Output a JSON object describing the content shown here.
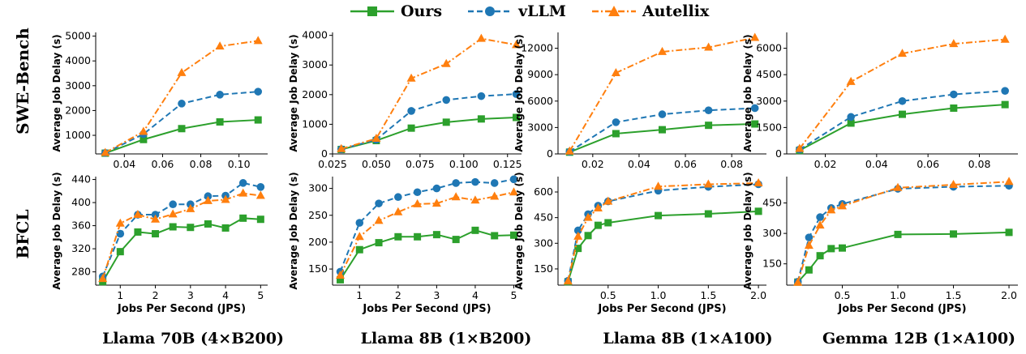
{
  "legend": {
    "ours": "Ours",
    "vllm": "vLLM",
    "autellix": "Autellix"
  },
  "colors": {
    "ours": "#2ca02c",
    "vllm": "#1f77b4",
    "autellix": "#ff7f0e"
  },
  "row_labels": {
    "top": "SWE-Bench",
    "bottom": "BFCL"
  },
  "column_titles": [
    "Llama 70B (4×B200)",
    "Llama 8B (1×B200)",
    "Llama 8B (1×A100)",
    "Gemma 12B (1×A100)"
  ],
  "ylabel": "Average Job Delay (s)",
  "xlabel": "Jobs Per Second (JPS)",
  "chart_data": [
    {
      "type": "line",
      "row": "SWE-Bench",
      "column": "Llama 70B (4×B200)",
      "x": [
        0.03,
        0.05,
        0.07,
        0.09,
        0.11
      ],
      "xlim": [
        0.025,
        0.115
      ],
      "ylim": [
        250,
        5150
      ],
      "xticks": [
        0.04,
        0.06,
        0.08,
        0.1
      ],
      "xtick_labels": [
        "0.04",
        "0.06",
        "0.08",
        "0.10"
      ],
      "yticks": [
        1000,
        2000,
        3000,
        4000,
        5000
      ],
      "ytick_labels": [
        "1000",
        "2000",
        "3000",
        "4000",
        "5000"
      ],
      "xlabel": "",
      "ylabel": "Average Job Delay (s)",
      "series": [
        {
          "name": "Ours",
          "values": [
            280,
            830,
            1270,
            1540,
            1620
          ]
        },
        {
          "name": "vLLM",
          "values": [
            290,
            1050,
            2280,
            2640,
            2760
          ]
        },
        {
          "name": "Autellix",
          "values": [
            300,
            1150,
            3520,
            4590,
            4810
          ]
        }
      ]
    },
    {
      "type": "line",
      "row": "SWE-Bench",
      "column": "Llama 8B (1×B200)",
      "x": [
        0.03,
        0.05,
        0.07,
        0.09,
        0.11,
        0.13
      ],
      "xlim": [
        0.025,
        0.133
      ],
      "ylim": [
        0,
        4100
      ],
      "xticks": [
        0.025,
        0.05,
        0.075,
        0.1,
        0.125
      ],
      "xtick_labels": [
        "0.025",
        "0.050",
        "0.075",
        "0.100",
        "0.125"
      ],
      "yticks": [
        0,
        1000,
        2000,
        3000,
        4000
      ],
      "ytick_labels": [
        "0",
        "1000",
        "2000",
        "3000",
        "4000"
      ],
      "xlabel": "",
      "ylabel": "Average Job Delay (s)",
      "series": [
        {
          "name": "Ours",
          "values": [
            150,
            450,
            870,
            1070,
            1180,
            1230
          ]
        },
        {
          "name": "vLLM",
          "values": [
            160,
            480,
            1450,
            1820,
            1950,
            2020
          ]
        },
        {
          "name": "Autellix",
          "values": [
            170,
            520,
            2550,
            3040,
            3890,
            3680
          ]
        }
      ]
    },
    {
      "type": "line",
      "row": "SWE-Bench",
      "column": "Llama 8B (1×A100)",
      "x": [
        0.01,
        0.03,
        0.05,
        0.07,
        0.09
      ],
      "xlim": [
        0.005,
        0.095
      ],
      "ylim": [
        0,
        13800
      ],
      "xticks": [
        0.02,
        0.04,
        0.06,
        0.08
      ],
      "xtick_labels": [
        "0.02",
        "0.04",
        "0.06",
        "0.08"
      ],
      "yticks": [
        0,
        3000,
        6000,
        9000,
        12000
      ],
      "ytick_labels": [
        "0",
        "3000",
        "6000",
        "9000",
        "12000"
      ],
      "xlabel": "",
      "ylabel": "Average Job Delay (s)",
      "series": [
        {
          "name": "Ours",
          "values": [
            200,
            2300,
            2750,
            3250,
            3400
          ]
        },
        {
          "name": "vLLM",
          "values": [
            250,
            3600,
            4500,
            4950,
            5200
          ]
        },
        {
          "name": "Autellix",
          "values": [
            300,
            9200,
            11600,
            12100,
            13200
          ]
        }
      ]
    },
    {
      "type": "line",
      "row": "SWE-Bench",
      "column": "Gemma 12B (1×A100)",
      "x": [
        0.01,
        0.03,
        0.05,
        0.07,
        0.09
      ],
      "xlim": [
        0.005,
        0.095
      ],
      "ylim": [
        0,
        6900
      ],
      "xticks": [
        0.02,
        0.04,
        0.06,
        0.08
      ],
      "xtick_labels": [
        "0.02",
        "0.04",
        "0.06",
        "0.08"
      ],
      "yticks": [
        0,
        1500,
        3000,
        4500,
        6000
      ],
      "ytick_labels": [
        "0",
        "1500",
        "3000",
        "4500",
        "6000"
      ],
      "xlabel": "",
      "ylabel": "Average Job Delay (s)",
      "series": [
        {
          "name": "Ours",
          "values": [
            200,
            1750,
            2250,
            2600,
            2800
          ]
        },
        {
          "name": "vLLM",
          "values": [
            250,
            2100,
            3000,
            3380,
            3580
          ]
        },
        {
          "name": "Autellix",
          "values": [
            300,
            4100,
            5700,
            6250,
            6500
          ]
        }
      ]
    },
    {
      "type": "line",
      "row": "BFCL",
      "column": "Llama 70B (4×B200)",
      "x": [
        0.5,
        1,
        1.5,
        2,
        2.5,
        3,
        3.5,
        4,
        4.5,
        5
      ],
      "xlim": [
        0.3,
        5.2
      ],
      "ylim": [
        257,
        445
      ],
      "xticks": [
        1,
        2,
        3,
        4,
        5
      ],
      "xtick_labels": [
        "1",
        "2",
        "3",
        "4",
        "5"
      ],
      "yticks": [
        280,
        320,
        360,
        400,
        440
      ],
      "ytick_labels": [
        "280",
        "320",
        "360",
        "400",
        "440"
      ],
      "xlabel": "Jobs Per Second (JPS)",
      "ylabel": "Average Job Delay (s)",
      "series": [
        {
          "name": "Ours",
          "values": [
            263,
            315,
            349,
            346,
            358,
            357,
            363,
            356,
            373,
            371
          ]
        },
        {
          "name": "vLLM",
          "values": [
            272,
            346,
            379,
            379,
            397,
            397,
            411,
            412,
            434,
            427
          ]
        },
        {
          "name": "Autellix",
          "values": [
            268,
            364,
            379,
            371,
            380,
            389,
            403,
            405,
            416,
            412
          ]
        }
      ]
    },
    {
      "type": "line",
      "row": "BFCL",
      "column": "Llama 8B (1×B200)",
      "x": [
        0.5,
        1,
        1.5,
        2,
        2.5,
        3,
        3.5,
        4,
        4.5,
        5
      ],
      "xlim": [
        0.3,
        5.2
      ],
      "ylim": [
        120,
        322
      ],
      "xticks": [
        1,
        2,
        3,
        4,
        5
      ],
      "xtick_labels": [
        "1",
        "2",
        "3",
        "4",
        "5"
      ],
      "yticks": [
        150,
        200,
        250,
        300
      ],
      "ytick_labels": [
        "150",
        "200",
        "250",
        "300"
      ],
      "xlabel": "Jobs Per Second (JPS)",
      "ylabel": "Average Job Delay (s)",
      "series": [
        {
          "name": "Ours",
          "values": [
            130,
            186,
            199,
            210,
            210,
            214,
            205,
            222,
            212,
            213
          ]
        },
        {
          "name": "vLLM",
          "values": [
            145,
            236,
            272,
            284,
            293,
            300,
            310,
            312,
            310,
            317
          ]
        },
        {
          "name": "Autellix",
          "values": [
            138,
            210,
            240,
            256,
            271,
            272,
            284,
            278,
            285,
            293
          ]
        }
      ]
    },
    {
      "type": "line",
      "row": "BFCL",
      "column": "Llama 8B (1×A100)",
      "x": [
        0.1,
        0.2,
        0.3,
        0.4,
        0.5,
        1.0,
        1.5,
        2.0
      ],
      "xlim": [
        0.0,
        2.08
      ],
      "ylim": [
        55,
        690
      ],
      "xticks": [
        0.5,
        1.0,
        1.5,
        2.0
      ],
      "xtick_labels": [
        "0.5",
        "1.0",
        "1.5",
        "2.0"
      ],
      "yticks": [
        150,
        300,
        450,
        600
      ],
      "ytick_labels": [
        "150",
        "300",
        "450",
        "600"
      ],
      "xlabel": "Jobs Per Second (JPS)",
      "ylabel": "Average Job Delay (s)",
      "series": [
        {
          "name": "Ours",
          "values": [
            75,
            270,
            345,
            405,
            420,
            462,
            472,
            487
          ]
        },
        {
          "name": "vLLM",
          "values": [
            80,
            375,
            470,
            520,
            545,
            608,
            630,
            645
          ]
        },
        {
          "name": "Autellix",
          "values": [
            78,
            340,
            450,
            505,
            545,
            632,
            645,
            652
          ]
        }
      ]
    },
    {
      "type": "line",
      "row": "BFCL",
      "column": "Gemma 12B (1×A100)",
      "x": [
        0.1,
        0.2,
        0.3,
        0.4,
        0.5,
        1.0,
        1.5,
        2.0
      ],
      "xlim": [
        0.0,
        2.08
      ],
      "ylim": [
        45,
        580
      ],
      "xticks": [
        0.5,
        1.0,
        1.5,
        2.0
      ],
      "xtick_labels": [
        "0.5",
        "1.0",
        "1.5",
        "2.0"
      ],
      "yticks": [
        150,
        300,
        450
      ],
      "ytick_labels": [
        "150",
        "300",
        "450"
      ],
      "xlabel": "Jobs Per Second (JPS)",
      "ylabel": "Average Job Delay (s)",
      "series": [
        {
          "name": "Ours",
          "values": [
            60,
            120,
            190,
            225,
            228,
            295,
            297,
            305
          ]
        },
        {
          "name": "vLLM",
          "values": [
            62,
            280,
            380,
            425,
            445,
            520,
            530,
            535
          ]
        },
        {
          "name": "Autellix",
          "values": [
            58,
            240,
            340,
            415,
            435,
            525,
            540,
            555
          ]
        }
      ]
    }
  ]
}
